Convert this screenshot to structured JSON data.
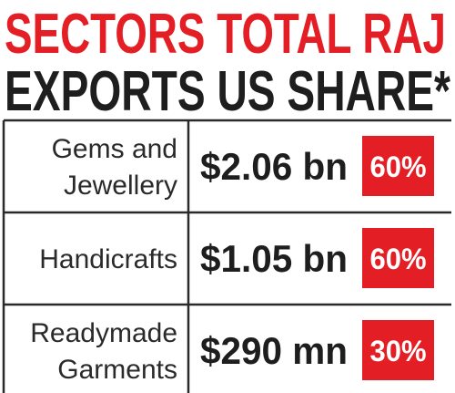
{
  "header": {
    "title_line_1": "SECTORS TOTAL RAJ",
    "title_line_2": "EXPORTS US SHARE*"
  },
  "table": {
    "rows": [
      {
        "sector": [
          "Gems and",
          "Jewellery"
        ],
        "total": "$2.06 bn",
        "share": "60%"
      },
      {
        "sector": [
          "Handicrafts"
        ],
        "total": "$1.05 bn",
        "share": "60%"
      },
      {
        "sector": [
          "Readymade",
          "Garments"
        ],
        "total": "$290 mn",
        "share": "30%"
      }
    ]
  }
}
